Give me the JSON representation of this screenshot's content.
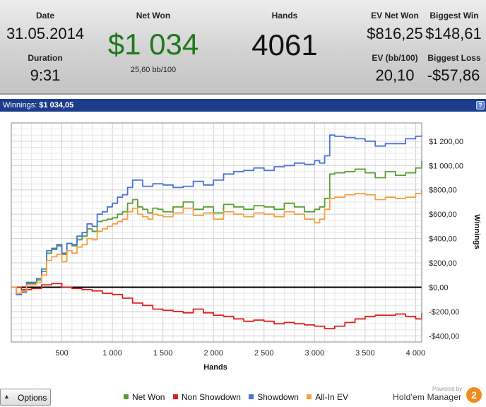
{
  "stats": {
    "date_label": "Date",
    "date_value": "31.05.2014",
    "duration_label": "Duration",
    "duration_value": "9:31",
    "net_won_label": "Net Won",
    "net_won_value": "$1 034",
    "bb_per_100": "25,60 bb/100",
    "hands_label": "Hands",
    "hands_value": "4061",
    "ev_net_won_label": "EV Net Won",
    "ev_net_won_value": "$816,25",
    "ev_bb_label": "EV (bb/100)",
    "ev_bb_value": "20,10",
    "biggest_win_label": "Biggest Win",
    "biggest_win_value": "$148,61",
    "biggest_loss_label": "Biggest Loss",
    "biggest_loss_value": "-$57,86"
  },
  "title_bar": {
    "label": "Winnings:",
    "value": "$1 034,05",
    "help": "?"
  },
  "options": {
    "label": "Options"
  },
  "branding": {
    "powered_by": "Powered by",
    "name": "Hold'em Manager",
    "badge": "2"
  },
  "colors": {
    "net_won": "#5a9e32",
    "non_showdown": "#e02020",
    "showdown": "#4a72d8",
    "all_in_ev": "#f4a040",
    "net_won_text": "#1e7a1e"
  },
  "chart_data": {
    "type": "line",
    "xlabel": "Hands",
    "ylabel": "Winnings",
    "xlim": [
      0,
      4060
    ],
    "ylim": [
      -450,
      1350
    ],
    "x_ticks": [
      500,
      1000,
      1500,
      2000,
      2500,
      3000,
      3500,
      4000
    ],
    "x_tick_labels": [
      "500",
      "1 000",
      "1 500",
      "2 000",
      "2 500",
      "3 000",
      "3 500",
      "4 000"
    ],
    "y_ticks": [
      -400,
      -200,
      0,
      200,
      400,
      600,
      800,
      1000,
      1200
    ],
    "y_tick_labels": [
      "-$400,00",
      "-$200,00",
      "$0,00",
      "$200,00",
      "$400,00",
      "$600,00",
      "$800,00",
      "$1 000,00",
      "$1 200,00"
    ],
    "grid": true,
    "legend_position": "bottom",
    "series": [
      {
        "name": "Net Won",
        "color": "#5a9e32",
        "x": [
          0,
          50,
          100,
          150,
          200,
          250,
          300,
          350,
          400,
          450,
          500,
          550,
          600,
          650,
          700,
          750,
          800,
          850,
          900,
          950,
          1000,
          1050,
          1100,
          1150,
          1200,
          1250,
          1300,
          1350,
          1400,
          1450,
          1500,
          1600,
          1700,
          1800,
          1900,
          2000,
          2100,
          2200,
          2300,
          2400,
          2500,
          2600,
          2700,
          2800,
          2900,
          3000,
          3050,
          3100,
          3150,
          3200,
          3300,
          3400,
          3500,
          3600,
          3700,
          3800,
          3900,
          4000,
          4060
        ],
        "y": [
          0,
          -60,
          -40,
          30,
          30,
          60,
          130,
          280,
          310,
          340,
          270,
          360,
          340,
          390,
          420,
          480,
          460,
          540,
          550,
          560,
          570,
          600,
          620,
          690,
          720,
          660,
          640,
          610,
          650,
          640,
          620,
          660,
          700,
          640,
          660,
          610,
          680,
          660,
          640,
          670,
          660,
          640,
          690,
          660,
          620,
          640,
          660,
          730,
          930,
          940,
          950,
          970,
          940,
          900,
          950,
          920,
          940,
          980,
          1040
        ]
      },
      {
        "name": "Non Showdown",
        "color": "#e02020",
        "x": [
          0,
          100,
          200,
          300,
          400,
          500,
          600,
          700,
          800,
          900,
          1000,
          1100,
          1200,
          1300,
          1400,
          1500,
          1600,
          1700,
          1800,
          1900,
          2000,
          2100,
          2200,
          2300,
          2400,
          2500,
          2600,
          2700,
          2800,
          2900,
          3000,
          3100,
          3200,
          3300,
          3400,
          3500,
          3600,
          3700,
          3800,
          3900,
          4000,
          4060
        ],
        "y": [
          0,
          -20,
          -10,
          20,
          30,
          0,
          -10,
          -20,
          -30,
          -50,
          -60,
          -90,
          -130,
          -150,
          -180,
          -190,
          -200,
          -210,
          -180,
          -210,
          -230,
          -240,
          -260,
          -280,
          -270,
          -280,
          -300,
          -290,
          -300,
          -310,
          -320,
          -340,
          -320,
          -290,
          -260,
          -240,
          -230,
          -230,
          -220,
          -240,
          -260,
          -210
        ]
      },
      {
        "name": "Showdown",
        "color": "#4a72d8",
        "x": [
          0,
          50,
          100,
          150,
          200,
          250,
          300,
          350,
          400,
          450,
          500,
          550,
          600,
          650,
          700,
          750,
          800,
          850,
          900,
          950,
          1000,
          1050,
          1100,
          1150,
          1200,
          1300,
          1400,
          1500,
          1600,
          1700,
          1800,
          1900,
          2000,
          2100,
          2200,
          2300,
          2400,
          2500,
          2600,
          2700,
          2800,
          2900,
          3000,
          3050,
          3100,
          3150,
          3200,
          3300,
          3400,
          3500,
          3600,
          3700,
          3800,
          3900,
          4000,
          4060
        ],
        "y": [
          0,
          -60,
          -40,
          40,
          40,
          70,
          150,
          300,
          320,
          350,
          280,
          360,
          350,
          420,
          450,
          520,
          500,
          600,
          620,
          660,
          690,
          740,
          760,
          820,
          880,
          830,
          850,
          840,
          820,
          830,
          870,
          840,
          880,
          930,
          950,
          960,
          980,
          960,
          990,
          1000,
          1020,
          1010,
          1040,
          1020,
          1080,
          1250,
          1240,
          1230,
          1220,
          1200,
          1160,
          1180,
          1180,
          1220,
          1240,
          1250
        ]
      },
      {
        "name": "All-In EV",
        "color": "#f4a040",
        "x": [
          0,
          50,
          100,
          150,
          200,
          250,
          300,
          350,
          400,
          450,
          500,
          550,
          600,
          650,
          700,
          750,
          800,
          850,
          900,
          950,
          1000,
          1050,
          1100,
          1150,
          1200,
          1250,
          1300,
          1350,
          1400,
          1450,
          1500,
          1600,
          1700,
          1800,
          1900,
          2000,
          2100,
          2200,
          2300,
          2400,
          2500,
          2600,
          2700,
          2800,
          2900,
          3000,
          3050,
          3100,
          3150,
          3200,
          3300,
          3400,
          3500,
          3600,
          3700,
          3800,
          3900,
          4000,
          4060
        ],
        "y": [
          0,
          -50,
          -30,
          20,
          20,
          40,
          100,
          220,
          250,
          270,
          210,
          300,
          280,
          330,
          350,
          400,
          390,
          460,
          480,
          500,
          520,
          540,
          560,
          620,
          650,
          600,
          580,
          560,
          600,
          590,
          580,
          610,
          650,
          590,
          610,
          560,
          620,
          600,
          580,
          610,
          600,
          580,
          620,
          600,
          560,
          530,
          560,
          640,
          730,
          740,
          760,
          770,
          760,
          720,
          740,
          730,
          740,
          770,
          800
        ]
      }
    ]
  }
}
